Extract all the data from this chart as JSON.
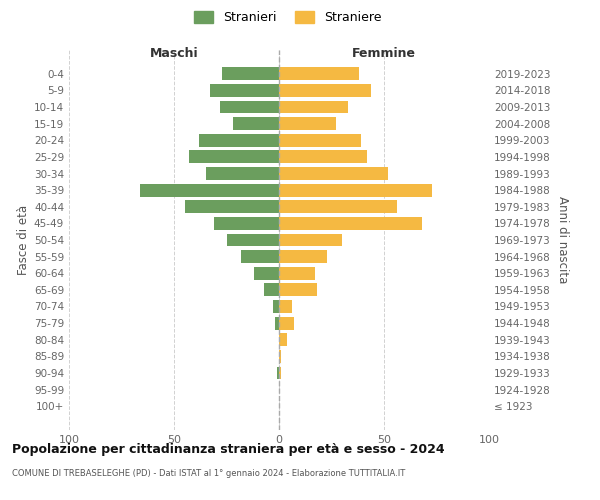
{
  "age_groups": [
    "0-4",
    "5-9",
    "10-14",
    "15-19",
    "20-24",
    "25-29",
    "30-34",
    "35-39",
    "40-44",
    "45-49",
    "50-54",
    "55-59",
    "60-64",
    "65-69",
    "70-74",
    "75-79",
    "80-84",
    "85-89",
    "90-94",
    "95-99",
    "100+"
  ],
  "birth_years": [
    "2019-2023",
    "2014-2018",
    "2009-2013",
    "2004-2008",
    "1999-2003",
    "1994-1998",
    "1989-1993",
    "1984-1988",
    "1979-1983",
    "1974-1978",
    "1969-1973",
    "1964-1968",
    "1959-1963",
    "1954-1958",
    "1949-1953",
    "1944-1948",
    "1939-1943",
    "1934-1938",
    "1929-1933",
    "1924-1928",
    "≤ 1923"
  ],
  "maschi": [
    27,
    33,
    28,
    22,
    38,
    43,
    35,
    66,
    45,
    31,
    25,
    18,
    12,
    7,
    3,
    2,
    0,
    0,
    1,
    0,
    0
  ],
  "femmine": [
    38,
    44,
    33,
    27,
    39,
    42,
    52,
    73,
    56,
    68,
    30,
    23,
    17,
    18,
    6,
    7,
    4,
    1,
    1,
    0,
    0
  ],
  "maschi_color": "#6b9e5e",
  "femmine_color": "#f5b942",
  "background_color": "#ffffff",
  "grid_color": "#cccccc",
  "title": "Popolazione per cittadinanza straniera per età e sesso - 2024",
  "subtitle": "COMUNE DI TREBASELEGHE (PD) - Dati ISTAT al 1° gennaio 2024 - Elaborazione TUTTITALIA.IT",
  "label_maschi": "Maschi",
  "label_femmine": "Femmine",
  "ylabel_left": "Fasce di età",
  "ylabel_right": "Anni di nascita",
  "xlim": 100,
  "legend_stranieri": "Stranieri",
  "legend_straniere": "Straniere"
}
